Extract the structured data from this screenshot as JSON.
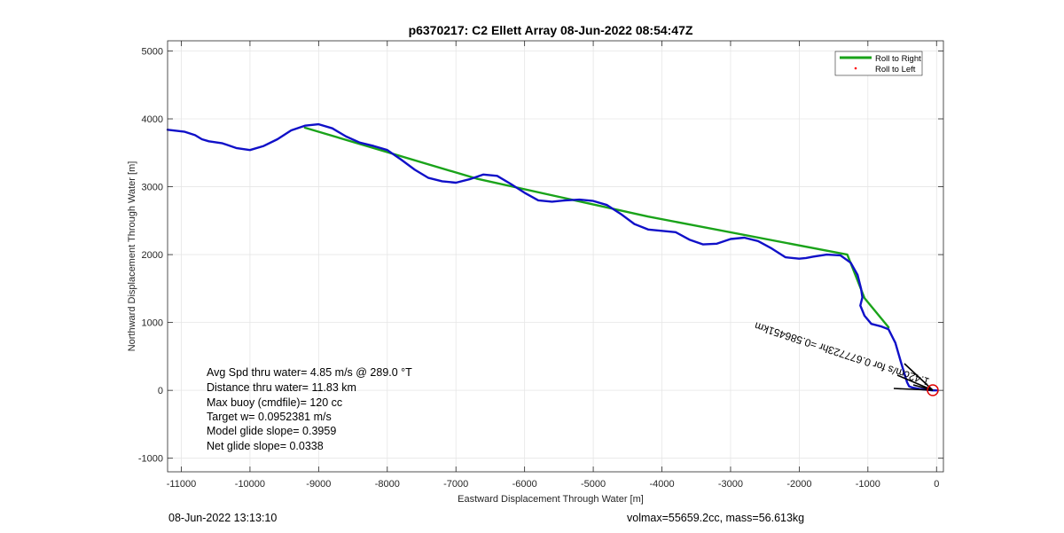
{
  "chart_data": {
    "type": "line",
    "title": "p6370217: C2 Ellett Array 08-Jun-2022 08:54:47Z",
    "xlabel": "Eastward Displacement Through Water [m]",
    "ylabel": "Northward Displacement Through Water [m]",
    "xlim": [
      -11200,
      100
    ],
    "ylim": [
      -1200,
      5150
    ],
    "xticks": [
      -11000,
      -10000,
      -9000,
      -8000,
      -7000,
      -6000,
      -5000,
      -4000,
      -3000,
      -2000,
      -1000,
      0
    ],
    "yticks": [
      -1000,
      0,
      1000,
      2000,
      3000,
      4000,
      5000
    ],
    "grid": true,
    "legend_position": "top-right",
    "series": [
      {
        "name": "Roll to Right",
        "color": "#1aa31a",
        "x": [
          -9200,
          -6700,
          -4200,
          -1300,
          -1050,
          -700
        ],
        "y": [
          3870,
          3120,
          2560,
          2000,
          1360,
          930
        ]
      },
      {
        "name": "Roll to Left",
        "color": "#ff0000",
        "x": [],
        "y": []
      },
      {
        "name": "",
        "color": "#1010c8",
        "x": [
          -11200,
          -10950,
          -10800,
          -10700,
          -10600,
          -10400,
          -10200,
          -10000,
          -9800,
          -9600,
          -9400,
          -9200,
          -9000,
          -8800,
          -8600,
          -8400,
          -8200,
          -8000,
          -7800,
          -7600,
          -7400,
          -7200,
          -7000,
          -6800,
          -6600,
          -6400,
          -6200,
          -6000,
          -5800,
          -5600,
          -5400,
          -5200,
          -5000,
          -4800,
          -4600,
          -4400,
          -4200,
          -4000,
          -3800,
          -3600,
          -3400,
          -3200,
          -3000,
          -2800,
          -2600,
          -2400,
          -2200,
          -2000,
          -1900,
          -1800,
          -1600,
          -1400,
          -1250,
          -1150,
          -1100,
          -1080,
          -1110,
          -1050,
          -950,
          -800,
          -700,
          -600,
          -520,
          -470,
          -430,
          -400,
          -350,
          -250,
          -150,
          -60,
          0
        ],
        "y": [
          3840,
          3810,
          3760,
          3700,
          3670,
          3640,
          3570,
          3540,
          3600,
          3700,
          3830,
          3900,
          3920,
          3860,
          3740,
          3650,
          3600,
          3540,
          3400,
          3250,
          3130,
          3080,
          3060,
          3110,
          3180,
          3160,
          3040,
          2910,
          2800,
          2780,
          2800,
          2810,
          2790,
          2730,
          2600,
          2450,
          2370,
          2350,
          2330,
          2220,
          2150,
          2160,
          2230,
          2250,
          2200,
          2090,
          1960,
          1940,
          1950,
          1970,
          2000,
          1990,
          1880,
          1700,
          1500,
          1370,
          1250,
          1100,
          980,
          940,
          900,
          700,
          420,
          250,
          120,
          60,
          40,
          20,
          10,
          0,
          0
        ]
      }
    ],
    "annotations": [
      {
        "text": "Avg Spd thru water=  4.85 m/s @ 289.0 °T"
      },
      {
        "text": "Distance thru water= 11.83 km"
      },
      {
        "text": "Max buoy (cmdfile)= 120 cc"
      },
      {
        "text": "Target w= 0.0952381 m/s"
      },
      {
        "text": "Model glide slope= 0.3959"
      },
      {
        "text": "Net glide slope= 0.0338"
      },
      {
        "text": "1.42cm/s for 0.677723hr =0.586451km"
      }
    ]
  },
  "footer": {
    "timestamp": "08-Jun-2022 13:13:10",
    "info": "volmax=55659.2cc, mass=56.613kg"
  }
}
